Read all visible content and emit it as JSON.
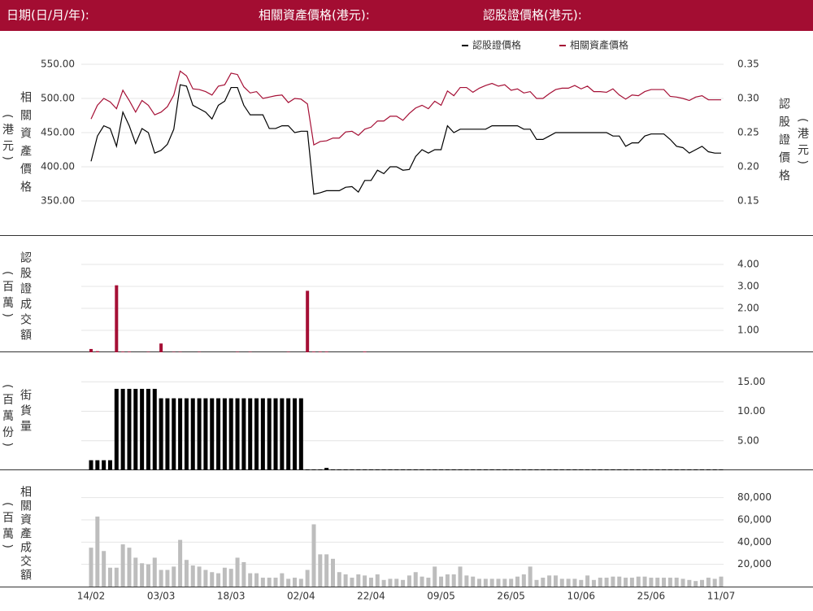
{
  "header": {
    "date_label": "日期(日/月/年):",
    "underlying_label": "相關資產價格(港元):",
    "warrant_label": "認股證價格(港元):"
  },
  "chart_data": [
    {
      "type": "line",
      "y_label": "相關資產價格",
      "y_unit": "(港元)",
      "y2_label": "認股證價格",
      "y2_unit": "(港元)",
      "legend": "upper right",
      "grid": true,
      "ylim": [
        300,
        570
      ],
      "yticks": [
        {
          "value": 350,
          "label": "350.00"
        },
        {
          "value": 400,
          "label": "400.00"
        },
        {
          "value": 450,
          "label": "450.00"
        },
        {
          "value": 500,
          "label": "500.00"
        },
        {
          "value": 550,
          "label": "550.00"
        }
      ],
      "y2lim": [
        0.1,
        0.37
      ],
      "y2ticks": [
        0.15,
        {
          "value": 0.2,
          "label": "0.20"
        },
        0.25,
        {
          "value": 0.3,
          "label": "0.30"
        },
        0.35
      ],
      "series": [
        {
          "name": "相關資產價格",
          "color": "#a50f35",
          "values": [
            470,
            490,
            500,
            495,
            485,
            512,
            497,
            480,
            497,
            490,
            476,
            480,
            488,
            505,
            540,
            533,
            514,
            513,
            510,
            505,
            518,
            520,
            537,
            535,
            517,
            508,
            510,
            500,
            502,
            504,
            505,
            494,
            500,
            499,
            492,
            432,
            437,
            438,
            442,
            442,
            451,
            452,
            446,
            455,
            458,
            467,
            467,
            474,
            474,
            468,
            478,
            486,
            490,
            485,
            496,
            490,
            511,
            504,
            516,
            516,
            509,
            515,
            519,
            522,
            518,
            520,
            512,
            514,
            508,
            510,
            500,
            500,
            507,
            513,
            515,
            515,
            519,
            514,
            518,
            510,
            510,
            509,
            514,
            505,
            499,
            505,
            504,
            510,
            513,
            513,
            513,
            503,
            502,
            500,
            497,
            502,
            504,
            498,
            498,
            498
          ]
        },
        {
          "name": "認股證價格",
          "color": "#000000",
          "axis": "y2",
          "values": [
            0.208,
            0.245,
            0.26,
            0.256,
            0.23,
            0.28,
            0.26,
            0.234,
            0.256,
            0.25,
            0.22,
            0.224,
            0.233,
            0.255,
            0.32,
            0.318,
            0.29,
            0.285,
            0.28,
            0.27,
            0.29,
            0.296,
            0.316,
            0.316,
            0.29,
            0.276,
            0.276,
            0.276,
            0.256,
            0.256,
            0.26,
            0.26,
            0.25,
            0.252,
            0.252,
            0.16,
            0.162,
            0.165,
            0.165,
            0.165,
            0.17,
            0.171,
            0.163,
            0.18,
            0.18,
            0.195,
            0.19,
            0.2,
            0.2,
            0.195,
            0.196,
            0.215,
            0.225,
            0.22,
            0.225,
            0.225,
            0.26,
            0.25,
            0.255,
            0.255,
            0.255,
            0.255,
            0.255,
            0.26,
            0.26,
            0.26,
            0.26,
            0.26,
            0.255,
            0.255,
            0.24,
            0.24,
            0.245,
            0.25,
            0.25,
            0.25,
            0.25,
            0.25,
            0.25,
            0.25,
            0.25,
            0.25,
            0.245,
            0.245,
            0.23,
            0.235,
            0.235,
            0.245,
            0.248,
            0.248,
            0.248,
            0.24,
            0.23,
            0.228,
            0.22,
            0.225,
            0.23,
            0.222,
            0.22,
            0.22
          ]
        }
      ]
    },
    {
      "type": "bar",
      "y_label": "認股證成交額",
      "y_unit": "(百萬)",
      "color": "#a50f35",
      "grid": true,
      "ylim": [
        0,
        4.5
      ],
      "yticks": [
        {
          "value": 1,
          "label": "1.00"
        },
        {
          "value": 2,
          "label": "2.00"
        },
        {
          "value": 3,
          "label": "3.00"
        },
        {
          "value": 4,
          "label": "4.00"
        }
      ],
      "values": [
        0.15,
        0.05,
        0,
        0,
        3.05,
        0.03,
        0.03,
        0,
        0,
        0.02,
        0,
        0.4,
        0,
        0.02,
        0.02,
        0,
        0,
        0.02,
        0,
        0,
        0,
        0,
        0,
        0.02,
        0,
        0.02,
        0,
        0,
        0,
        0,
        0,
        0.02,
        0,
        0,
        2.8,
        0.03,
        0.03,
        0.03,
        0,
        0,
        0,
        0,
        0,
        0.03,
        0,
        0,
        0,
        0,
        0,
        0,
        0,
        0,
        0,
        0,
        0,
        0,
        0,
        0,
        0,
        0,
        0,
        0,
        0,
        0,
        0,
        0,
        0,
        0,
        0,
        0,
        0,
        0,
        0,
        0,
        0,
        0,
        0,
        0,
        0,
        0,
        0,
        0,
        0,
        0,
        0,
        0,
        0,
        0,
        0,
        0,
        0,
        0,
        0,
        0,
        0,
        0,
        0,
        0,
        0,
        0
      ]
    },
    {
      "type": "bar",
      "y_label": "街貨量",
      "y_unit": "(百萬份)",
      "color": "#000000",
      "grid": true,
      "ylim": [
        0,
        20
      ],
      "yticks": [
        {
          "value": 5,
          "label": "5.00"
        },
        {
          "value": 10,
          "label": "10.00"
        },
        {
          "value": 15,
          "label": "15.00"
        }
      ],
      "values": [
        1.7,
        1.7,
        1.7,
        1.7,
        13.8,
        13.8,
        13.8,
        13.8,
        13.8,
        13.8,
        13.8,
        12.2,
        12.2,
        12.2,
        12.2,
        12.2,
        12.2,
        12.2,
        12.2,
        12.2,
        12.2,
        12.2,
        12.2,
        12.2,
        12.2,
        12.2,
        12.2,
        12.2,
        12.2,
        12.2,
        12.2,
        12.2,
        12.2,
        12.2,
        0.15,
        0.15,
        0.15,
        0.4,
        0.15,
        0.15,
        0.15,
        0.15,
        0.15,
        0.15,
        0.15,
        0.15,
        0.15,
        0.15,
        0.15,
        0.15,
        0.15,
        0.15,
        0.15,
        0.15,
        0.15,
        0.15,
        0.15,
        0.15,
        0.15,
        0.15,
        0.15,
        0.15,
        0.15,
        0.15,
        0.15,
        0.15,
        0.15,
        0.15,
        0.15,
        0.15,
        0.15,
        0.15,
        0.15,
        0.15,
        0.15,
        0.15,
        0.15,
        0.15,
        0.15,
        0.15,
        0.15,
        0.15,
        0.15,
        0.15,
        0.15,
        0.15,
        0.15,
        0.15,
        0.15,
        0.15,
        0.15,
        0.15,
        0.15,
        0.15,
        0.15,
        0.15,
        0.15,
        0.15,
        0.15,
        0.15
      ]
    },
    {
      "type": "bar",
      "y_label": "相關資產成交額",
      "y_unit": "(百萬)",
      "color": "#bdbdbd",
      "grid": true,
      "ylim": [
        0,
        90000
      ],
      "yticks": [
        {
          "value": 20000,
          "label": "20,000"
        },
        {
          "value": 40000,
          "label": "40,000"
        },
        {
          "value": 60000,
          "label": "60,000"
        },
        {
          "value": 80000,
          "label": "80,000"
        }
      ],
      "categories": [
        "14/02",
        null,
        null,
        null,
        null,
        null,
        null,
        null,
        null,
        null,
        null,
        "03/03",
        null,
        null,
        null,
        null,
        null,
        null,
        null,
        null,
        null,
        null,
        "18/03",
        null,
        null,
        null,
        null,
        null,
        null,
        null,
        null,
        null,
        null,
        "02/04",
        null,
        null,
        null,
        null,
        null,
        null,
        null,
        null,
        null,
        null,
        "22/04",
        null,
        null,
        null,
        null,
        null,
        null,
        null,
        null,
        null,
        null,
        "09/05",
        null,
        null,
        null,
        null,
        null,
        null,
        null,
        null,
        null,
        null,
        "26/05",
        null,
        null,
        null,
        null,
        null,
        null,
        null,
        null,
        null,
        null,
        "10/06",
        null,
        null,
        null,
        null,
        null,
        null,
        null,
        null,
        null,
        null,
        "25/06",
        null,
        null,
        null,
        null,
        null,
        null,
        null,
        null,
        null,
        null,
        "11/07"
      ],
      "values": [
        35000,
        63000,
        32000,
        17000,
        17000,
        38000,
        35000,
        26000,
        21000,
        20000,
        26000,
        15000,
        15000,
        18000,
        42000,
        24000,
        19000,
        18000,
        15000,
        13000,
        12000,
        17000,
        16000,
        26000,
        22000,
        12000,
        12000,
        8000,
        8000,
        8000,
        12000,
        7000,
        8000,
        7000,
        15000,
        56000,
        29000,
        29000,
        25000,
        13000,
        11000,
        8000,
        11000,
        10000,
        8000,
        11000,
        6000,
        7000,
        7000,
        6000,
        10000,
        13000,
        9000,
        8000,
        18000,
        9000,
        11000,
        11000,
        18000,
        10000,
        9000,
        7000,
        7000,
        7000,
        7000,
        7000,
        7000,
        9000,
        11000,
        18000,
        6000,
        8000,
        10000,
        10000,
        7000,
        7000,
        7000,
        6000,
        10000,
        6000,
        8000,
        8000,
        9000,
        9000,
        8000,
        8000,
        9000,
        9000,
        8000,
        8000,
        8000,
        8000,
        8000,
        7000,
        6000,
        5000,
        6000,
        8000,
        7000,
        9000
      ]
    }
  ]
}
